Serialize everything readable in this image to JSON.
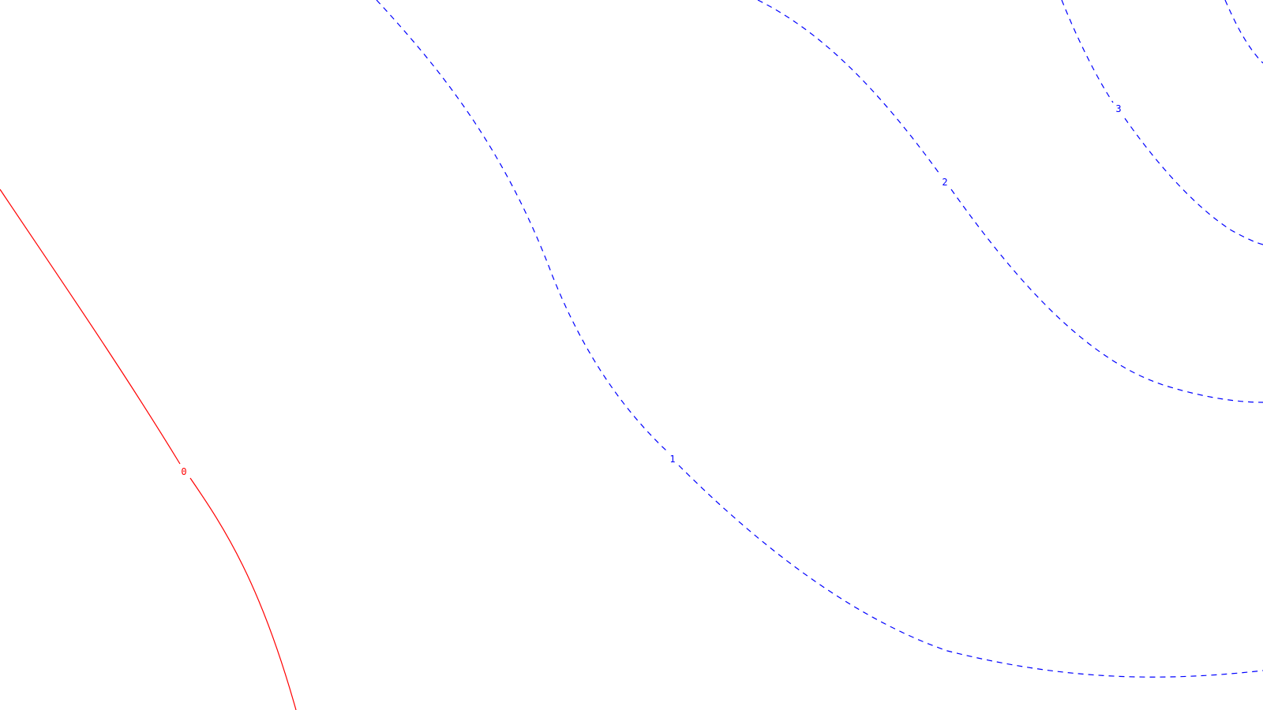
{
  "chart_data": {
    "type": "contour",
    "title": "",
    "xlabel": "",
    "ylabel": "",
    "grid": false,
    "legend": "none",
    "levels": [
      {
        "label": "0",
        "value": 0,
        "color": "#ff0000",
        "style": "solid"
      },
      {
        "label": "1",
        "value": 1,
        "color": "#0000ff",
        "style": "dashed"
      },
      {
        "label": "2",
        "value": 2,
        "color": "#0000ff",
        "style": "dashed"
      },
      {
        "label": "3",
        "value": 3,
        "color": "#0000ff",
        "style": "dashed"
      }
    ]
  }
}
